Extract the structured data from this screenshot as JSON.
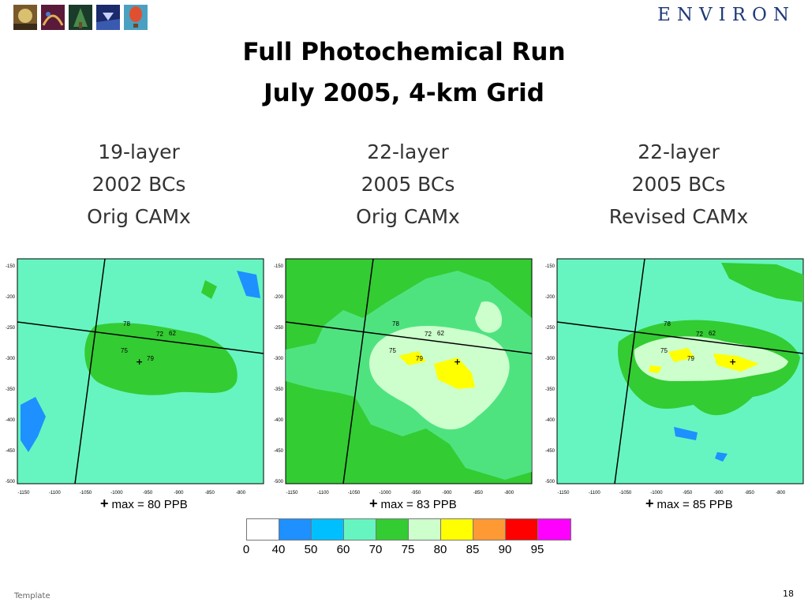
{
  "header": {
    "logo_text": "ENVIRON",
    "thumbnails": [
      "photo-thumbnail-1",
      "photo-thumbnail-2",
      "photo-thumbnail-3",
      "photo-thumbnail-4",
      "photo-thumbnail-5"
    ]
  },
  "title": {
    "line1": "Full Photochemical Run",
    "line2": "July 2005, 4-km Grid"
  },
  "panels": [
    {
      "line1": "19-layer",
      "line2": "2002 BCs",
      "line3": "Orig CAMx",
      "max_label": "max = 80 PPB",
      "site_values": [
        "78",
        "72",
        "62",
        "75",
        "79"
      ]
    },
    {
      "line1": "22-layer",
      "line2": "2005 BCs",
      "line3": "Orig CAMx",
      "max_label": "max = 83 PPB",
      "site_values": [
        "78",
        "72",
        "62",
        "75",
        "79"
      ]
    },
    {
      "line1": "22-layer",
      "line2": "2005 BCs",
      "line3": "Revised CAMx",
      "max_label": "max = 85 PPB",
      "site_values": [
        "78",
        "72",
        "62",
        "75",
        "79"
      ]
    }
  ],
  "axes": {
    "y_ticks": [
      "-150",
      "-200",
      "-250",
      "-300",
      "-350",
      "-400",
      "-450",
      "-500"
    ],
    "x_ticks": [
      "-1150",
      "-1100",
      "-1050",
      "-1000",
      "-950",
      "-900",
      "-850",
      "-800"
    ]
  },
  "colorbar": {
    "colors": [
      "#ffffff",
      "#1e90ff",
      "#00bfff",
      "#66f5c0",
      "#33cc33",
      "#ccffcc",
      "#ffff00",
      "#ff9933",
      "#ff0000",
      "#ff00ff"
    ],
    "labels": [
      "0",
      "40",
      "50",
      "60",
      "70",
      "75",
      "80",
      "85",
      "90",
      "95"
    ]
  },
  "footer": {
    "text": "Template",
    "page_number": "18"
  }
}
